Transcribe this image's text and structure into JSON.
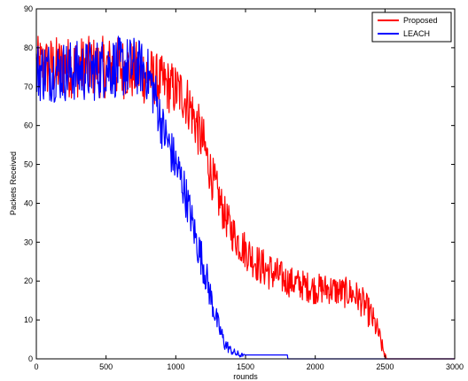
{
  "chart_data": {
    "type": "line",
    "title": "",
    "xlabel": "rounds",
    "ylabel": "Packets Received",
    "xlim": [
      0,
      3000
    ],
    "ylim": [
      0,
      90
    ],
    "xticks": [
      0,
      500,
      1000,
      1500,
      2000,
      2500,
      3000
    ],
    "yticks": [
      0,
      10,
      20,
      30,
      40,
      50,
      60,
      70,
      80,
      90
    ],
    "xtick_labels": [
      "0",
      "500",
      "1000",
      "1500",
      "2000",
      "2500",
      "3000"
    ],
    "ytick_labels": [
      "0",
      "10",
      "20",
      "30",
      "40",
      "50",
      "60",
      "70",
      "80",
      "90"
    ],
    "grid": false,
    "legend_position": "top-right",
    "series": [
      {
        "name": "Proposed",
        "color": "#ff0000",
        "x": [
          0,
          100,
          200,
          300,
          400,
          500,
          600,
          700,
          800,
          850,
          900,
          950,
          1000,
          1050,
          1100,
          1150,
          1200,
          1250,
          1300,
          1350,
          1400,
          1450,
          1500,
          1550,
          1600,
          1700,
          1800,
          1900,
          2000,
          2100,
          2200,
          2250,
          2300,
          2350,
          2400,
          2450,
          2480,
          2500,
          2510,
          3000
        ],
        "y": [
          75,
          75,
          75,
          75,
          75,
          75,
          75,
          74,
          73,
          72,
          71,
          70,
          69,
          68,
          65,
          60,
          55,
          48,
          42,
          37,
          33,
          30,
          28,
          26,
          24,
          22,
          20,
          19,
          18,
          18,
          17,
          17,
          16,
          14,
          11,
          7,
          3,
          1,
          0,
          0
        ],
        "noise": [
          8,
          8,
          8,
          8,
          8,
          8,
          8,
          8,
          8,
          7,
          7,
          7,
          7,
          7,
          7,
          7,
          7,
          6,
          6,
          5,
          5,
          5,
          5,
          5,
          5,
          5,
          4,
          4,
          4,
          4,
          4,
          4,
          4,
          4,
          4,
          3,
          2,
          1,
          0,
          0
        ]
      },
      {
        "name": "LEACH",
        "color": "#0000ff",
        "x": [
          0,
          100,
          200,
          300,
          400,
          500,
          600,
          700,
          750,
          800,
          850,
          900,
          950,
          1000,
          1050,
          1100,
          1150,
          1200,
          1250,
          1300,
          1350,
          1400,
          1450,
          1500,
          1800,
          1801,
          3000
        ],
        "y": [
          74,
          74,
          74,
          74,
          74,
          75,
          75,
          75,
          75,
          73,
          68,
          60,
          55,
          50,
          45,
          38,
          30,
          24,
          16,
          9,
          4,
          2,
          1,
          1,
          1,
          0,
          0
        ],
        "noise": [
          8,
          8,
          8,
          8,
          8,
          8,
          8,
          8,
          7,
          7,
          7,
          6,
          6,
          6,
          6,
          5,
          5,
          5,
          4,
          3,
          2,
          1,
          1,
          0,
          0,
          0,
          0
        ]
      }
    ]
  }
}
